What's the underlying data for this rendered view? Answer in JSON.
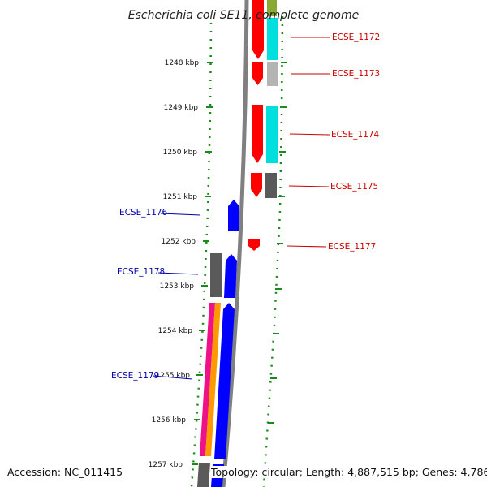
{
  "title": "Escherichia coli SE11, complete genome",
  "accession": "Accession: NC_011415",
  "topology": "Topology: circular; Length: 4,887,515 bp; Genes: 4,786",
  "ticks": [
    {
      "label": "1248 kbp"
    },
    {
      "label": "1249 kbp"
    },
    {
      "label": "1250 kbp"
    },
    {
      "label": "1251 kbp"
    },
    {
      "label": "1252 kbp"
    },
    {
      "label": "1253 kbp"
    },
    {
      "label": "1254 kbp"
    },
    {
      "label": "1255 kbp"
    },
    {
      "label": "1256 kbp"
    },
    {
      "label": "1257 kbp"
    }
  ],
  "genes": [
    {
      "name": "ECSE_1172",
      "strand": "forward"
    },
    {
      "name": "ECSE_1173",
      "strand": "forward"
    },
    {
      "name": "ECSE_1174",
      "strand": "forward"
    },
    {
      "name": "ECSE_1175",
      "strand": "forward"
    },
    {
      "name": "ECSE_1176",
      "strand": "reverse"
    },
    {
      "name": "ECSE_1177",
      "strand": "forward"
    },
    {
      "name": "ECSE_1178",
      "strand": "reverse"
    },
    {
      "name": "ECSE_1179",
      "strand": "reverse"
    }
  ],
  "colors": {
    "forward_gene": "#ff0000",
    "reverse_gene": "#0000ff",
    "forward_label": "#cc0000",
    "reverse_label": "#0000aa",
    "backbone": "#808080",
    "dotted_guide": "#1a8a1a",
    "cyan_track": "#00dede",
    "gray_track": "#5a5a5a",
    "lightgray_track": "#b4b4b4",
    "magenta_track": "#ee1188",
    "orange_track": "#ff9900",
    "olive_track": "#88aa33"
  }
}
